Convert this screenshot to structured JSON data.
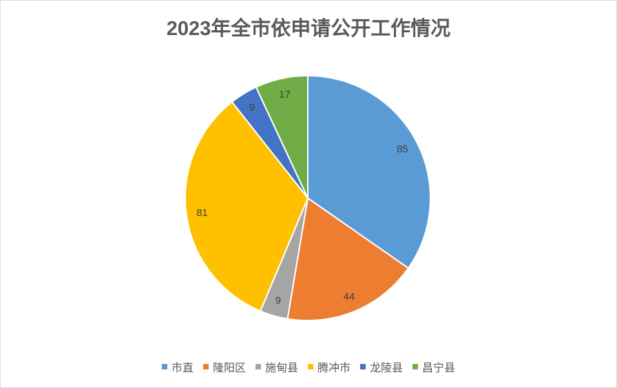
{
  "chart_data": {
    "type": "pie",
    "title": "2023年全市依申请公开工作情况",
    "categories": [
      "市直",
      "隆阳区",
      "施甸县",
      "腾冲市",
      "龙陵县",
      "昌宁县"
    ],
    "values": [
      85,
      44,
      9,
      81,
      9,
      17
    ],
    "colors": [
      "#5B9BD5",
      "#ED7D31",
      "#A5A5A5",
      "#FFC000",
      "#4472C4",
      "#70AD47"
    ],
    "data_labels": [
      "85",
      "44",
      "9",
      "81",
      "9",
      "17"
    ],
    "legend_position": "bottom",
    "start": "top, clockwise"
  }
}
